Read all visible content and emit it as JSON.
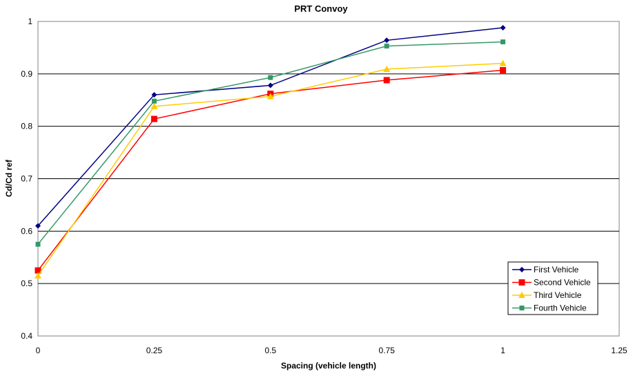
{
  "chart_data": {
    "type": "line",
    "title": "PRT Convoy",
    "xlabel": "Spacing (vehicle length)",
    "ylabel": "Cd/Cd ref",
    "xlim": [
      0,
      1.25
    ],
    "ylim": [
      0.4,
      1
    ],
    "xticks": [
      "0",
      "0.25",
      "0.5",
      "0.75",
      "1",
      "1.25"
    ],
    "yticks": [
      "0.4",
      "0.5",
      "0.6",
      "0.7",
      "0.8",
      "0.9",
      "1"
    ],
    "grid": "horizontal major gridlines",
    "legend_position": "bottom-right",
    "x": [
      0,
      0.25,
      0.5,
      0.75,
      1
    ],
    "series": [
      {
        "name": "First Vehicle",
        "color": "#000080",
        "marker": "diamond",
        "values": [
          0.61,
          0.86,
          0.878,
          0.964,
          0.988
        ]
      },
      {
        "name": "Second Vehicle",
        "color": "#FF0000",
        "marker": "square",
        "values": [
          0.525,
          0.814,
          0.862,
          0.888,
          0.907
        ]
      },
      {
        "name": "Third Vehicle",
        "color": "#FFCC00",
        "marker": "triangle",
        "values": [
          0.515,
          0.838,
          0.857,
          0.909,
          0.92
        ]
      },
      {
        "name": "Fourth Vehicle",
        "color": "#339966",
        "marker": "small-square",
        "values": [
          0.575,
          0.848,
          0.893,
          0.953,
          0.961
        ]
      }
    ]
  }
}
